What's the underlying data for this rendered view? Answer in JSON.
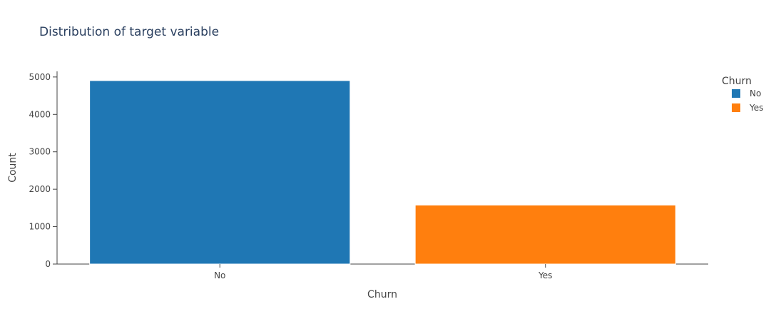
{
  "chart_data": {
    "type": "bar",
    "title": "Distribution of target variable",
    "xlabel": "Churn",
    "ylabel": "Count",
    "categories": [
      "No",
      "Yes"
    ],
    "values": [
      4904,
      1578
    ],
    "colors": [
      "#1f77b4",
      "#ff7f0e"
    ],
    "ylim": [
      0,
      5150
    ],
    "yticks": [
      0,
      1000,
      2000,
      3000,
      4000,
      5000
    ],
    "grid": false,
    "legend": {
      "title": "Churn",
      "position": "right",
      "entries": [
        "No",
        "Yes"
      ]
    }
  }
}
